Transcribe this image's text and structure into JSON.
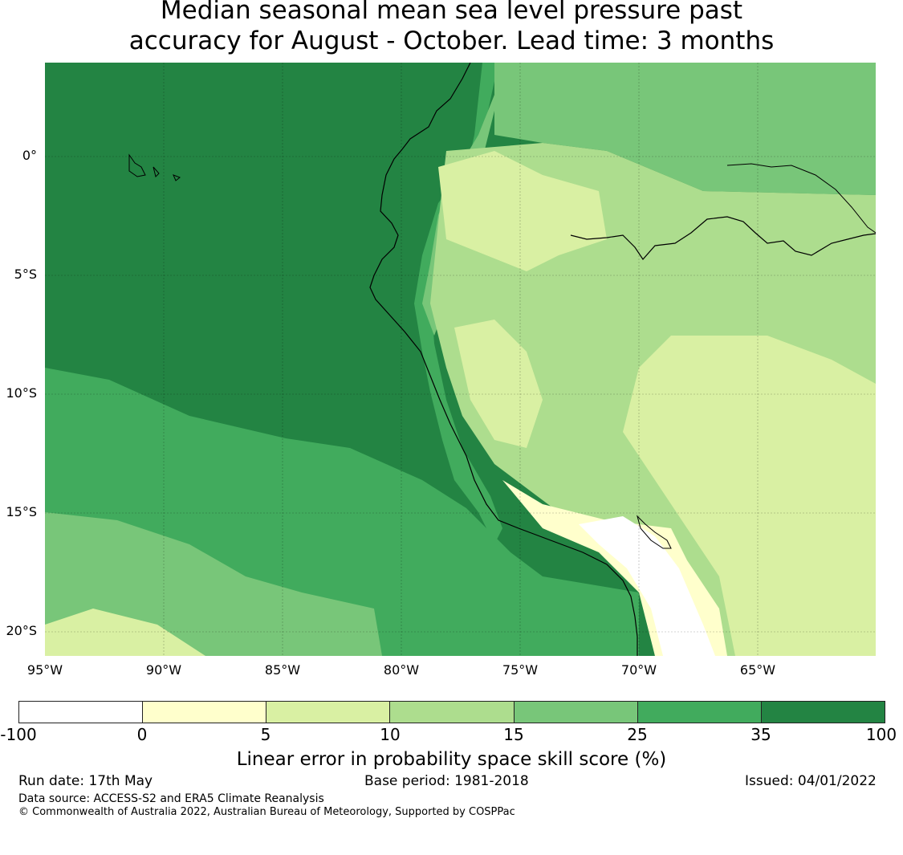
{
  "title_line1": "Median seasonal mean sea level pressure past",
  "title_line2": "accuracy for August - October. Lead time: 3 months",
  "map": {
    "lat_labels": [
      "0°",
      "5°S",
      "10°S",
      "15°S",
      "20°S"
    ],
    "lon_labels": [
      "95°W",
      "90°W",
      "85°W",
      "80°W",
      "75°W",
      "70°W",
      "65°W"
    ]
  },
  "colorbar": {
    "ticks": [
      "-100",
      "0",
      "5",
      "10",
      "15",
      "25",
      "35",
      "100"
    ],
    "colors": [
      "#ffffff",
      "#ffffcc",
      "#d9f0a3",
      "#addd8e",
      "#78c679",
      "#41ab5d",
      "#238443"
    ],
    "label": "Linear error in probability space skill score (%)"
  },
  "footer": {
    "run_date": "Run date: 17th May",
    "base_period": "Base period: 1981-2018",
    "issued": "Issued: 04/01/2022",
    "data_source": "Data source: ACCESS-S2 and ERA5 Climate Reanalysis",
    "copyright": "© Commonwealth of Australia 2022, Australian Bureau of Meteorology, Supported by COSPPac"
  }
}
